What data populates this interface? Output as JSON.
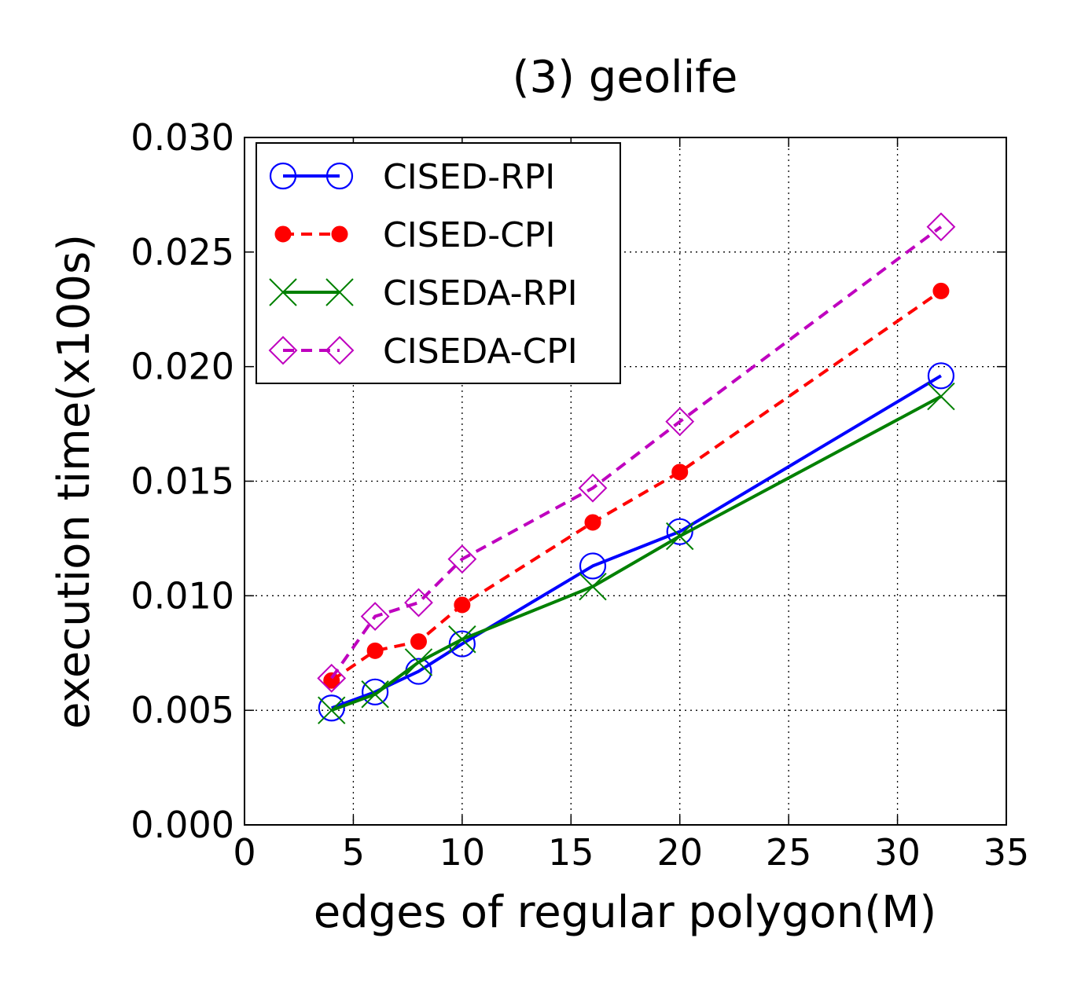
{
  "chart_data": {
    "type": "line",
    "title": "(3) geolife",
    "xlabel": "edges of regular polygon(M)",
    "ylabel": "execution time(x100s)",
    "xlim": [
      0,
      35
    ],
    "ylim": [
      0,
      0.03
    ],
    "xticks": [
      0,
      5,
      10,
      15,
      20,
      25,
      30,
      35
    ],
    "xtick_labels": [
      "0",
      "5",
      "10",
      "15",
      "20",
      "25",
      "30",
      "35"
    ],
    "yticks": [
      0,
      0.005,
      0.01,
      0.015,
      0.02,
      0.025,
      0.03
    ],
    "ytick_labels": [
      "0.000",
      "0.005",
      "0.010",
      "0.015",
      "0.020",
      "0.025",
      "0.030"
    ],
    "grid": true,
    "legend_position": "top-left",
    "x": [
      4,
      6,
      8,
      10,
      16,
      20,
      32
    ],
    "series": [
      {
        "name": "CISED-RPI",
        "color": "#0000ff",
        "dash": "solid",
        "marker": "circle-open",
        "values": [
          0.0051,
          0.0058,
          0.0067,
          0.0079,
          0.0113,
          0.0128,
          0.0196
        ]
      },
      {
        "name": "CISED-CPI",
        "color": "#ff0000",
        "dash": "dashed",
        "marker": "circle-filled",
        "values": [
          0.0063,
          0.0076,
          0.008,
          0.0096,
          0.0132,
          0.0154,
          0.0233
        ]
      },
      {
        "name": "CISEDA-RPI",
        "color": "#008000",
        "dash": "solid",
        "marker": "x",
        "values": [
          0.005,
          0.0057,
          0.0071,
          0.0081,
          0.0104,
          0.0126,
          0.0187
        ]
      },
      {
        "name": "CISEDA-CPI",
        "color": "#bf00bf",
        "dash": "dashed",
        "marker": "diamond-open",
        "values": [
          0.0064,
          0.0091,
          0.0097,
          0.0116,
          0.0147,
          0.0176,
          0.0261
        ]
      }
    ]
  }
}
